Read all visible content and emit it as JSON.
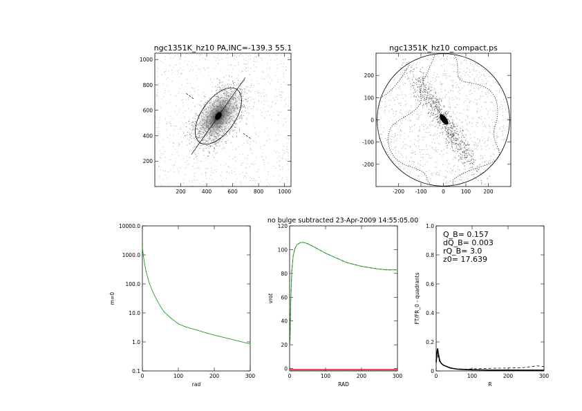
{
  "header": "no bulge subtracted   23-Apr-2009 14:55:05.00",
  "chart_data": [
    {
      "type": "image",
      "title": "ngc1351K_hz10 PA,INC=-139.3 55.1",
      "xlim": [
        0,
        1050
      ],
      "ylim": [
        0,
        1050
      ],
      "xticks": [
        200,
        400,
        600,
        800,
        1000
      ],
      "yticks": [
        200,
        400,
        600,
        800,
        1000
      ],
      "center": [
        490,
        555
      ],
      "ellipse_semi_axes": [
        130,
        255
      ],
      "ellipse_tilt_deg": 35
    },
    {
      "type": "image",
      "title": "ngc1351K_hz10_compact.ps",
      "xlim": [
        -300,
        300
      ],
      "ylim": [
        -300,
        300
      ],
      "xticks": [
        -200,
        -100,
        0,
        100,
        200
      ],
      "yticks": [
        -200,
        -100,
        0,
        100,
        200
      ],
      "circle_radius": 295
    },
    {
      "type": "line",
      "xlabel": "rad",
      "ylabel": "m=0",
      "xlim": [
        0,
        300
      ],
      "ylim": [
        0.1,
        10000
      ],
      "yscale": "log",
      "xticks": [
        0,
        100,
        200,
        300
      ],
      "yticks": [
        0.1,
        1,
        10,
        100,
        1000,
        10000
      ],
      "ytick_labels": [
        "0.1",
        "1.0",
        "10.0",
        "100.0",
        "1000.0",
        "10000.0"
      ],
      "series_color": "#1fa21f",
      "x": [
        0,
        3,
        6,
        10,
        15,
        20,
        30,
        40,
        50,
        60,
        80,
        100,
        120,
        150,
        180,
        210,
        240,
        270,
        300
      ],
      "y": [
        1800,
        900,
        500,
        280,
        160,
        100,
        50,
        28,
        17,
        11,
        6.5,
        4.2,
        3.3,
        2.6,
        2.0,
        1.6,
        1.3,
        1.05,
        0.85
      ]
    },
    {
      "type": "line",
      "xlabel": "RAD",
      "ylabel": "vrot",
      "xlim": [
        0,
        300
      ],
      "ylim": [
        -2,
        120
      ],
      "xticks": [
        0,
        100,
        200,
        300
      ],
      "yticks": [
        0,
        20,
        40,
        60,
        80,
        100,
        120
      ],
      "series_color": "#1fa21f",
      "x": [
        1,
        3,
        6,
        10,
        15,
        20,
        30,
        40,
        50,
        70,
        100,
        130,
        160,
        200,
        240,
        270,
        300
      ],
      "y": [
        20,
        55,
        82,
        95,
        101,
        104,
        106,
        106,
        105,
        102,
        97,
        93,
        89,
        86,
        84,
        83,
        83
      ],
      "baseline_color": "#e02020",
      "baseline_y": -1
    },
    {
      "type": "line",
      "xlabel": "R",
      "ylabel": "FT/FR_0 - quadrants",
      "xlim": [
        0,
        300
      ],
      "ylim": [
        0,
        1.0
      ],
      "xticks": [
        0,
        100,
        200,
        300
      ],
      "yticks": [
        0,
        0.2,
        0.4,
        0.6,
        0.8,
        1.0
      ],
      "ytick_labels": [
        "0",
        "0.2",
        "0.4",
        "0.6",
        "0.8",
        "1.0"
      ],
      "annotations": [
        "Q_B=  0.157",
        "dQ_B=  0.003",
        "rQ_B=    3.0",
        "z0= 17.639"
      ],
      "series": [
        {
          "x": [
            0,
            2,
            4,
            6,
            10,
            15,
            20,
            30,
            40,
            60,
            80,
            100,
            150,
            200,
            250,
            300
          ],
          "y": [
            0.06,
            0.12,
            0.155,
            0.12,
            0.07,
            0.05,
            0.04,
            0.03,
            0.02,
            0.012,
            0.01,
            0.008,
            0.006,
            0.006,
            0.005,
            0.005
          ]
        },
        {
          "x": [
            0,
            3,
            6,
            10,
            20,
            30,
            50,
            80,
            110,
            150,
            200,
            240,
            280,
            300
          ],
          "y": [
            0.05,
            0.13,
            0.09,
            0.06,
            0.04,
            0.03,
            0.015,
            0.012,
            0.015,
            0.018,
            0.02,
            0.022,
            0.035,
            0.03
          ]
        }
      ]
    }
  ]
}
